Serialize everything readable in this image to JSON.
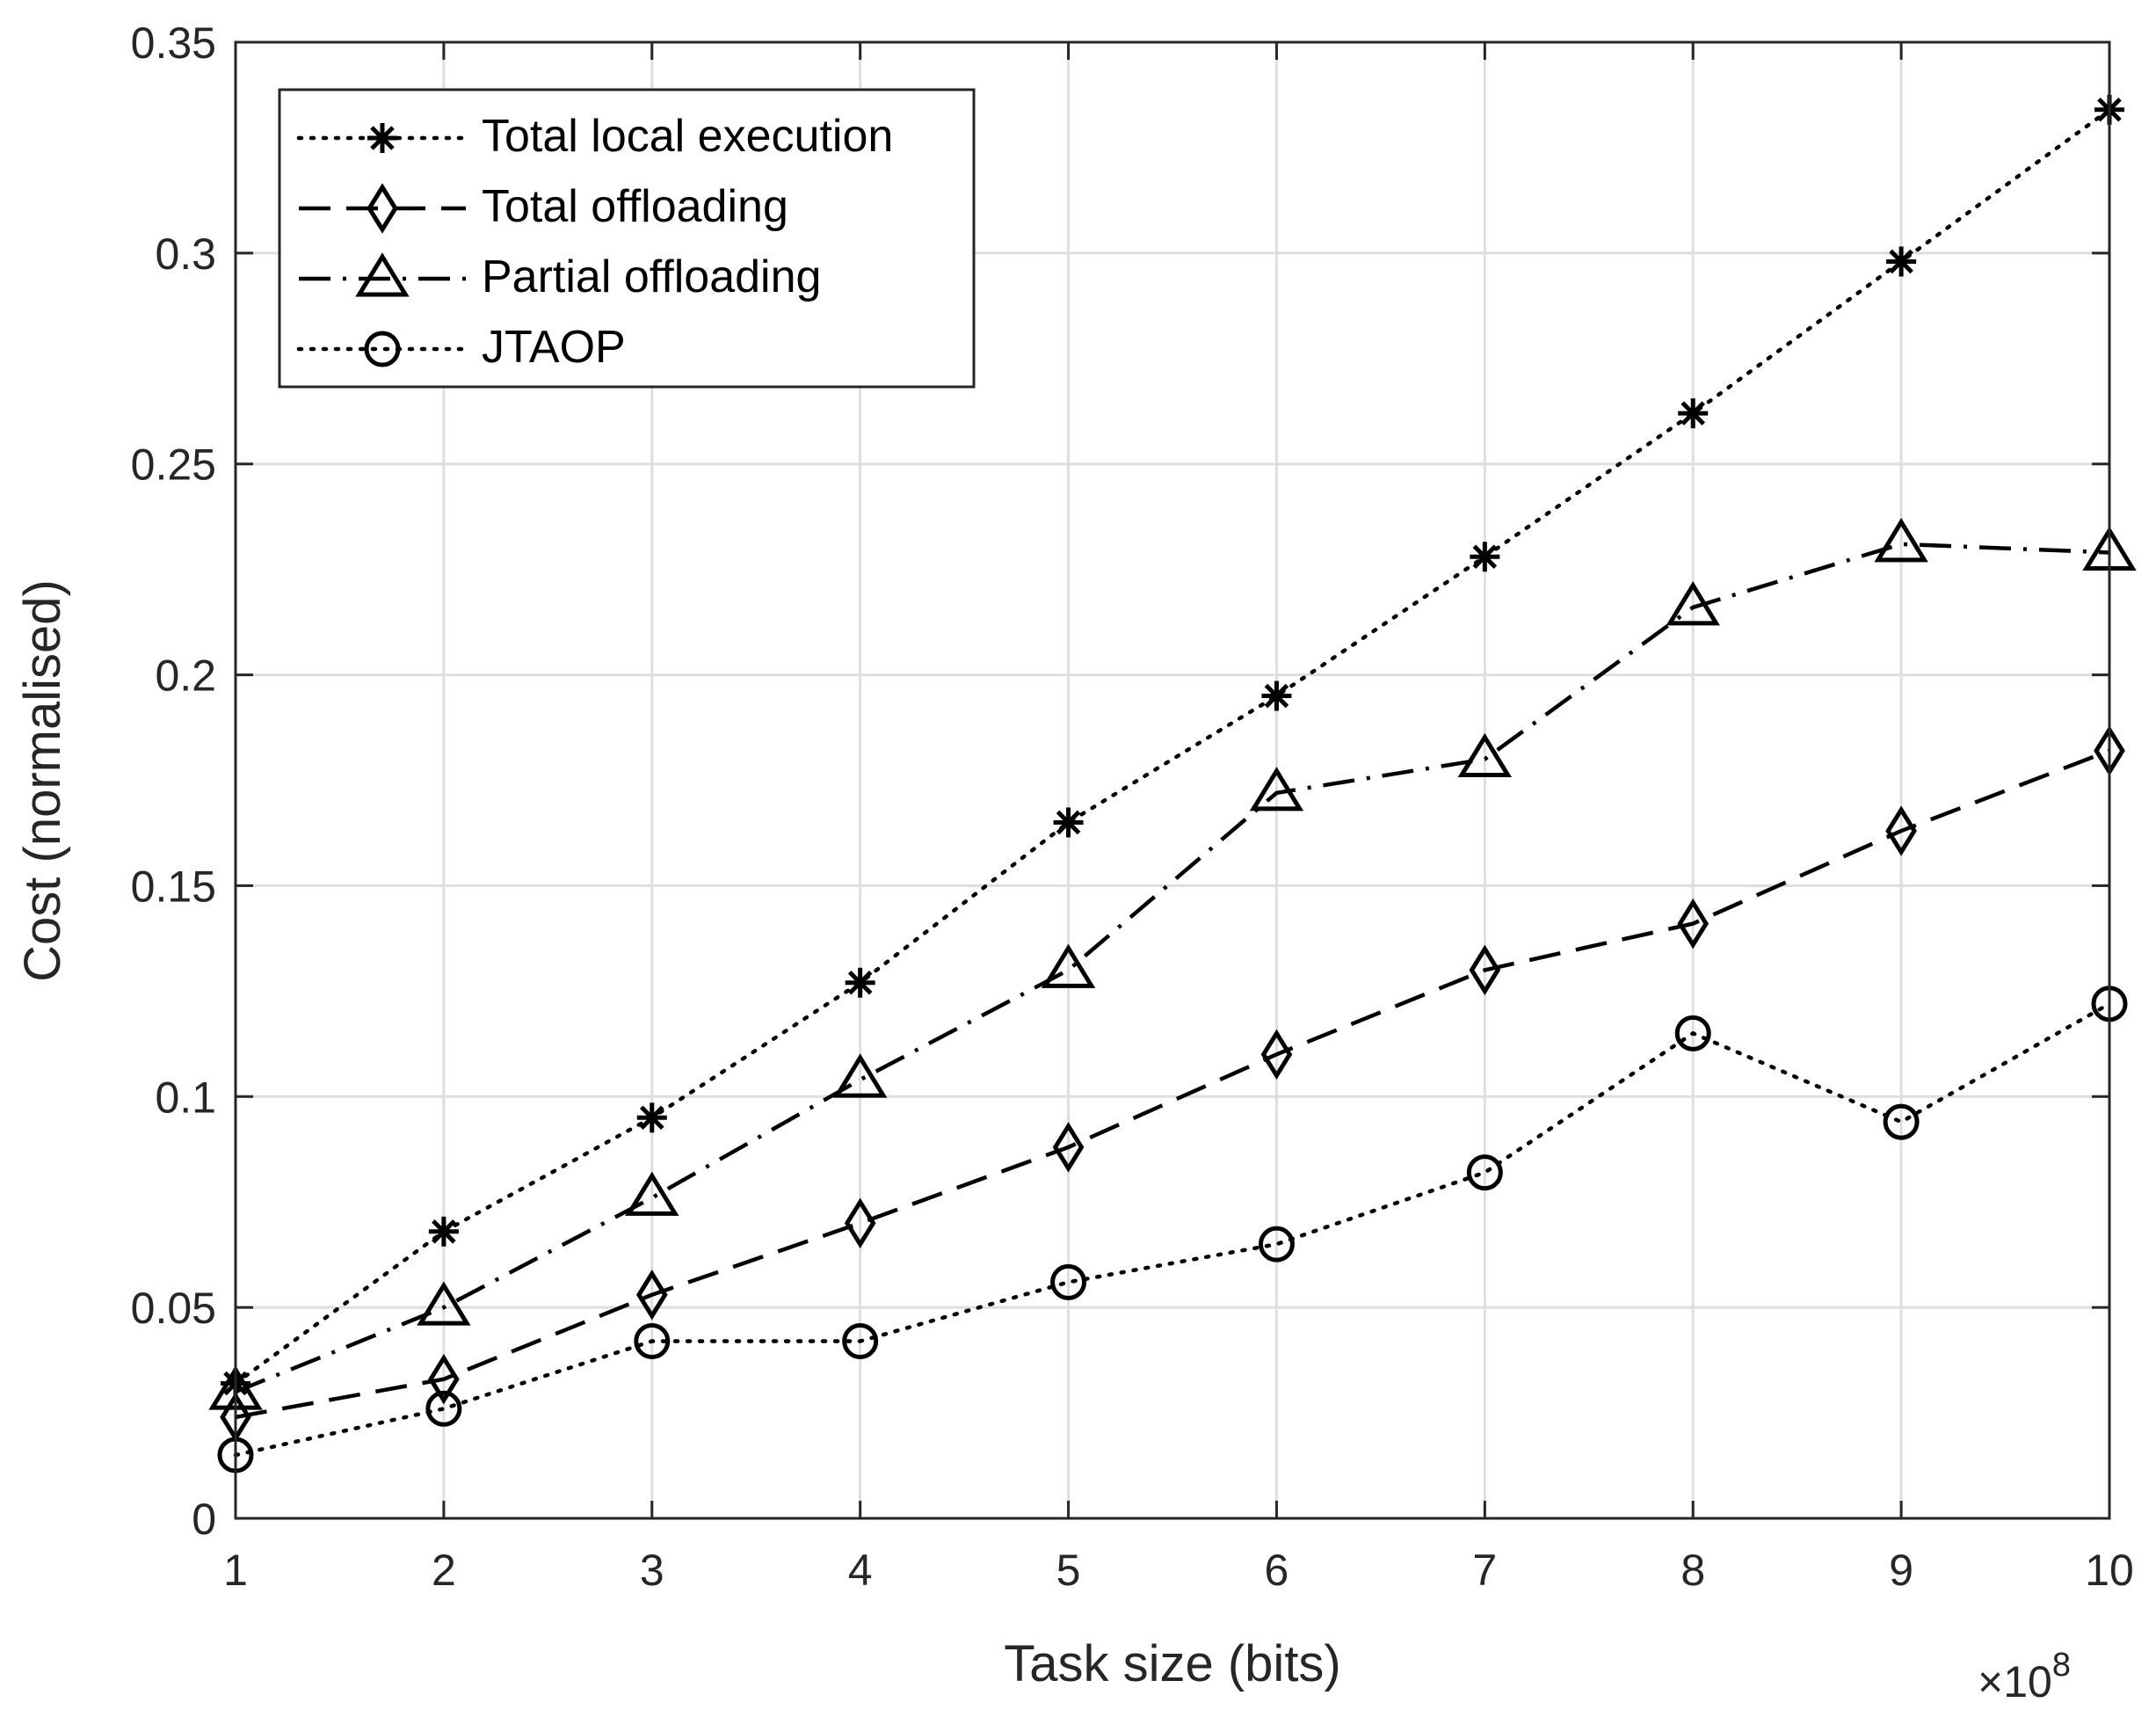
{
  "chart_data": {
    "type": "line",
    "title": "",
    "xlabel": "Task size (bits)",
    "ylabel": "Cost (normalised)",
    "x_multiplier_label": "×10",
    "x_multiplier_exponent": "8",
    "x": [
      1,
      2,
      3,
      4,
      5,
      6,
      7,
      8,
      9,
      10
    ],
    "xlim": [
      1,
      10
    ],
    "ylim": [
      0,
      0.35
    ],
    "xticks": [
      1,
      2,
      3,
      4,
      5,
      6,
      7,
      8,
      9,
      10
    ],
    "xtick_labels": [
      "1",
      "2",
      "3",
      "4",
      "5",
      "6",
      "7",
      "8",
      "9",
      "10"
    ],
    "yticks": [
      0,
      0.05,
      0.1,
      0.15,
      0.2,
      0.25,
      0.3,
      0.35
    ],
    "ytick_labels": [
      "0",
      "0.05",
      "0.1",
      "0.15",
      "0.2",
      "0.25",
      "0.3",
      "0.35"
    ],
    "grid": true,
    "legend_position": "top-left",
    "series": [
      {
        "name": "Total local execution",
        "marker": "asterisk",
        "line": "dotted",
        "values": [
          0.032,
          0.068,
          0.095,
          0.127,
          0.165,
          0.195,
          0.228,
          0.262,
          0.298,
          0.334
        ]
      },
      {
        "name": "Total offloading",
        "marker": "diamond",
        "line": "dashed",
        "values": [
          0.024,
          0.033,
          0.053,
          0.07,
          0.088,
          0.11,
          0.13,
          0.141,
          0.163,
          0.182
        ]
      },
      {
        "name": "Partial offloading",
        "marker": "triangle",
        "line": "dashdot",
        "values": [
          0.03,
          0.05,
          0.076,
          0.104,
          0.13,
          0.172,
          0.18,
          0.216,
          0.231,
          0.229
        ]
      },
      {
        "name": "JTAOP",
        "marker": "circle",
        "line": "dotted",
        "values": [
          0.015,
          0.026,
          0.042,
          0.042,
          0.056,
          0.065,
          0.082,
          0.115,
          0.094,
          0.122
        ]
      }
    ]
  },
  "colors": {
    "line": "#000000",
    "grid": "#dedede",
    "axis": "#262626",
    "background": "#ffffff"
  }
}
